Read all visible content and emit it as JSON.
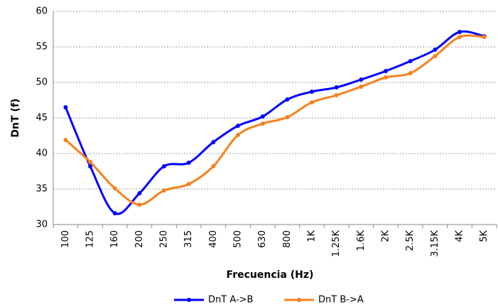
{
  "chart_data": {
    "type": "line",
    "x_label": "Frecuencia (Hz)",
    "y_label": "DnT (f)",
    "categories": [
      "100",
      "125",
      "160",
      "200",
      "250",
      "315",
      "400",
      "500",
      "630",
      "800",
      "1K",
      "1.25K",
      "1.6K",
      "2K",
      "2.5K",
      "3.15K",
      "4K",
      "5K"
    ],
    "series": [
      {
        "name": "DnT A->B",
        "color": "#0000ff",
        "values": [
          46.5,
          38.2,
          31.6,
          34.4,
          38.2,
          38.7,
          41.6,
          43.9,
          45.2,
          47.6,
          48.7,
          49.3,
          50.4,
          51.6,
          53.0,
          54.6,
          57.1,
          56.5
        ]
      },
      {
        "name": "DnT B->A",
        "color": "#f58220",
        "values": [
          41.9,
          38.8,
          35.1,
          32.8,
          34.8,
          35.7,
          38.2,
          42.6,
          44.2,
          45.1,
          47.2,
          48.2,
          49.4,
          50.7,
          51.3,
          53.7,
          56.4,
          56.4
        ]
      }
    ],
    "ylim": [
      30,
      60
    ],
    "yticks": [
      30,
      35,
      40,
      45,
      50,
      55,
      60
    ],
    "grid": true,
    "smooth": true,
    "legend": "bottom"
  }
}
